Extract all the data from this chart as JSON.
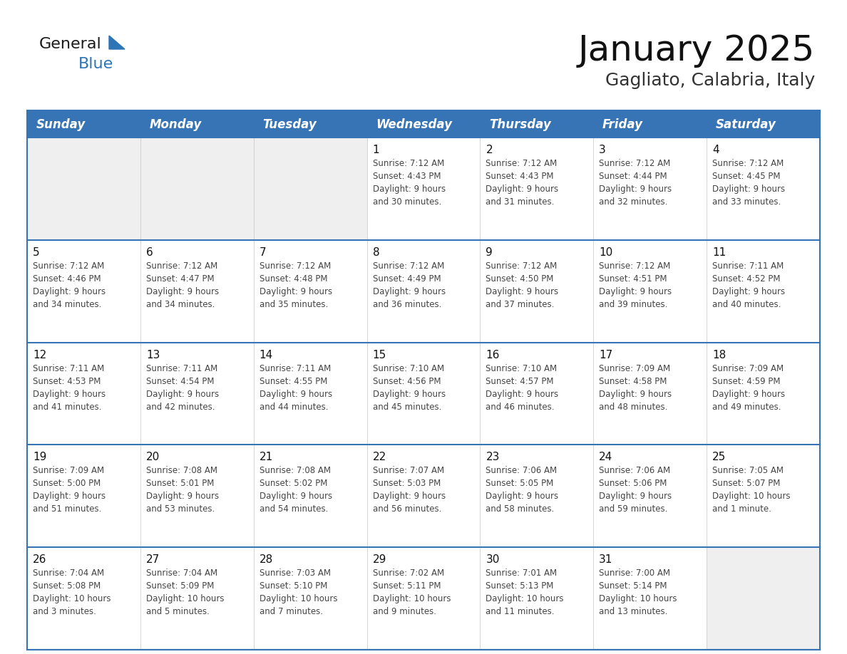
{
  "title": "January 2025",
  "subtitle": "Gagliato, Calabria, Italy",
  "days_of_week": [
    "Sunday",
    "Monday",
    "Tuesday",
    "Wednesday",
    "Thursday",
    "Friday",
    "Saturday"
  ],
  "header_bg": "#3674B5",
  "header_text": "#FFFFFF",
  "cell_bg_white": "#FFFFFF",
  "cell_bg_gray": "#EFEFEF",
  "row_border_color": "#3674B5",
  "text_color": "#444444",
  "day_number_color": "#111111",
  "calendar_data": [
    [
      "",
      "",
      "",
      "1\nSunrise: 7:12 AM\nSunset: 4:43 PM\nDaylight: 9 hours\nand 30 minutes.",
      "2\nSunrise: 7:12 AM\nSunset: 4:43 PM\nDaylight: 9 hours\nand 31 minutes.",
      "3\nSunrise: 7:12 AM\nSunset: 4:44 PM\nDaylight: 9 hours\nand 32 minutes.",
      "4\nSunrise: 7:12 AM\nSunset: 4:45 PM\nDaylight: 9 hours\nand 33 minutes."
    ],
    [
      "5\nSunrise: 7:12 AM\nSunset: 4:46 PM\nDaylight: 9 hours\nand 34 minutes.",
      "6\nSunrise: 7:12 AM\nSunset: 4:47 PM\nDaylight: 9 hours\nand 34 minutes.",
      "7\nSunrise: 7:12 AM\nSunset: 4:48 PM\nDaylight: 9 hours\nand 35 minutes.",
      "8\nSunrise: 7:12 AM\nSunset: 4:49 PM\nDaylight: 9 hours\nand 36 minutes.",
      "9\nSunrise: 7:12 AM\nSunset: 4:50 PM\nDaylight: 9 hours\nand 37 minutes.",
      "10\nSunrise: 7:12 AM\nSunset: 4:51 PM\nDaylight: 9 hours\nand 39 minutes.",
      "11\nSunrise: 7:11 AM\nSunset: 4:52 PM\nDaylight: 9 hours\nand 40 minutes."
    ],
    [
      "12\nSunrise: 7:11 AM\nSunset: 4:53 PM\nDaylight: 9 hours\nand 41 minutes.",
      "13\nSunrise: 7:11 AM\nSunset: 4:54 PM\nDaylight: 9 hours\nand 42 minutes.",
      "14\nSunrise: 7:11 AM\nSunset: 4:55 PM\nDaylight: 9 hours\nand 44 minutes.",
      "15\nSunrise: 7:10 AM\nSunset: 4:56 PM\nDaylight: 9 hours\nand 45 minutes.",
      "16\nSunrise: 7:10 AM\nSunset: 4:57 PM\nDaylight: 9 hours\nand 46 minutes.",
      "17\nSunrise: 7:09 AM\nSunset: 4:58 PM\nDaylight: 9 hours\nand 48 minutes.",
      "18\nSunrise: 7:09 AM\nSunset: 4:59 PM\nDaylight: 9 hours\nand 49 minutes."
    ],
    [
      "19\nSunrise: 7:09 AM\nSunset: 5:00 PM\nDaylight: 9 hours\nand 51 minutes.",
      "20\nSunrise: 7:08 AM\nSunset: 5:01 PM\nDaylight: 9 hours\nand 53 minutes.",
      "21\nSunrise: 7:08 AM\nSunset: 5:02 PM\nDaylight: 9 hours\nand 54 minutes.",
      "22\nSunrise: 7:07 AM\nSunset: 5:03 PM\nDaylight: 9 hours\nand 56 minutes.",
      "23\nSunrise: 7:06 AM\nSunset: 5:05 PM\nDaylight: 9 hours\nand 58 minutes.",
      "24\nSunrise: 7:06 AM\nSunset: 5:06 PM\nDaylight: 9 hours\nand 59 minutes.",
      "25\nSunrise: 7:05 AM\nSunset: 5:07 PM\nDaylight: 10 hours\nand 1 minute."
    ],
    [
      "26\nSunrise: 7:04 AM\nSunset: 5:08 PM\nDaylight: 10 hours\nand 3 minutes.",
      "27\nSunrise: 7:04 AM\nSunset: 5:09 PM\nDaylight: 10 hours\nand 5 minutes.",
      "28\nSunrise: 7:03 AM\nSunset: 5:10 PM\nDaylight: 10 hours\nand 7 minutes.",
      "29\nSunrise: 7:02 AM\nSunset: 5:11 PM\nDaylight: 10 hours\nand 9 minutes.",
      "30\nSunrise: 7:01 AM\nSunset: 5:13 PM\nDaylight: 10 hours\nand 11 minutes.",
      "31\nSunrise: 7:00 AM\nSunset: 5:14 PM\nDaylight: 10 hours\nand 13 minutes.",
      ""
    ]
  ],
  "logo_color_general": "#1A1A1A",
  "logo_color_blue": "#2E75B6",
  "logo_triangle_color": "#2E75B6",
  "title_fontsize": 36,
  "subtitle_fontsize": 18,
  "header_fontsize": 12,
  "daynum_fontsize": 11,
  "info_fontsize": 8.5
}
